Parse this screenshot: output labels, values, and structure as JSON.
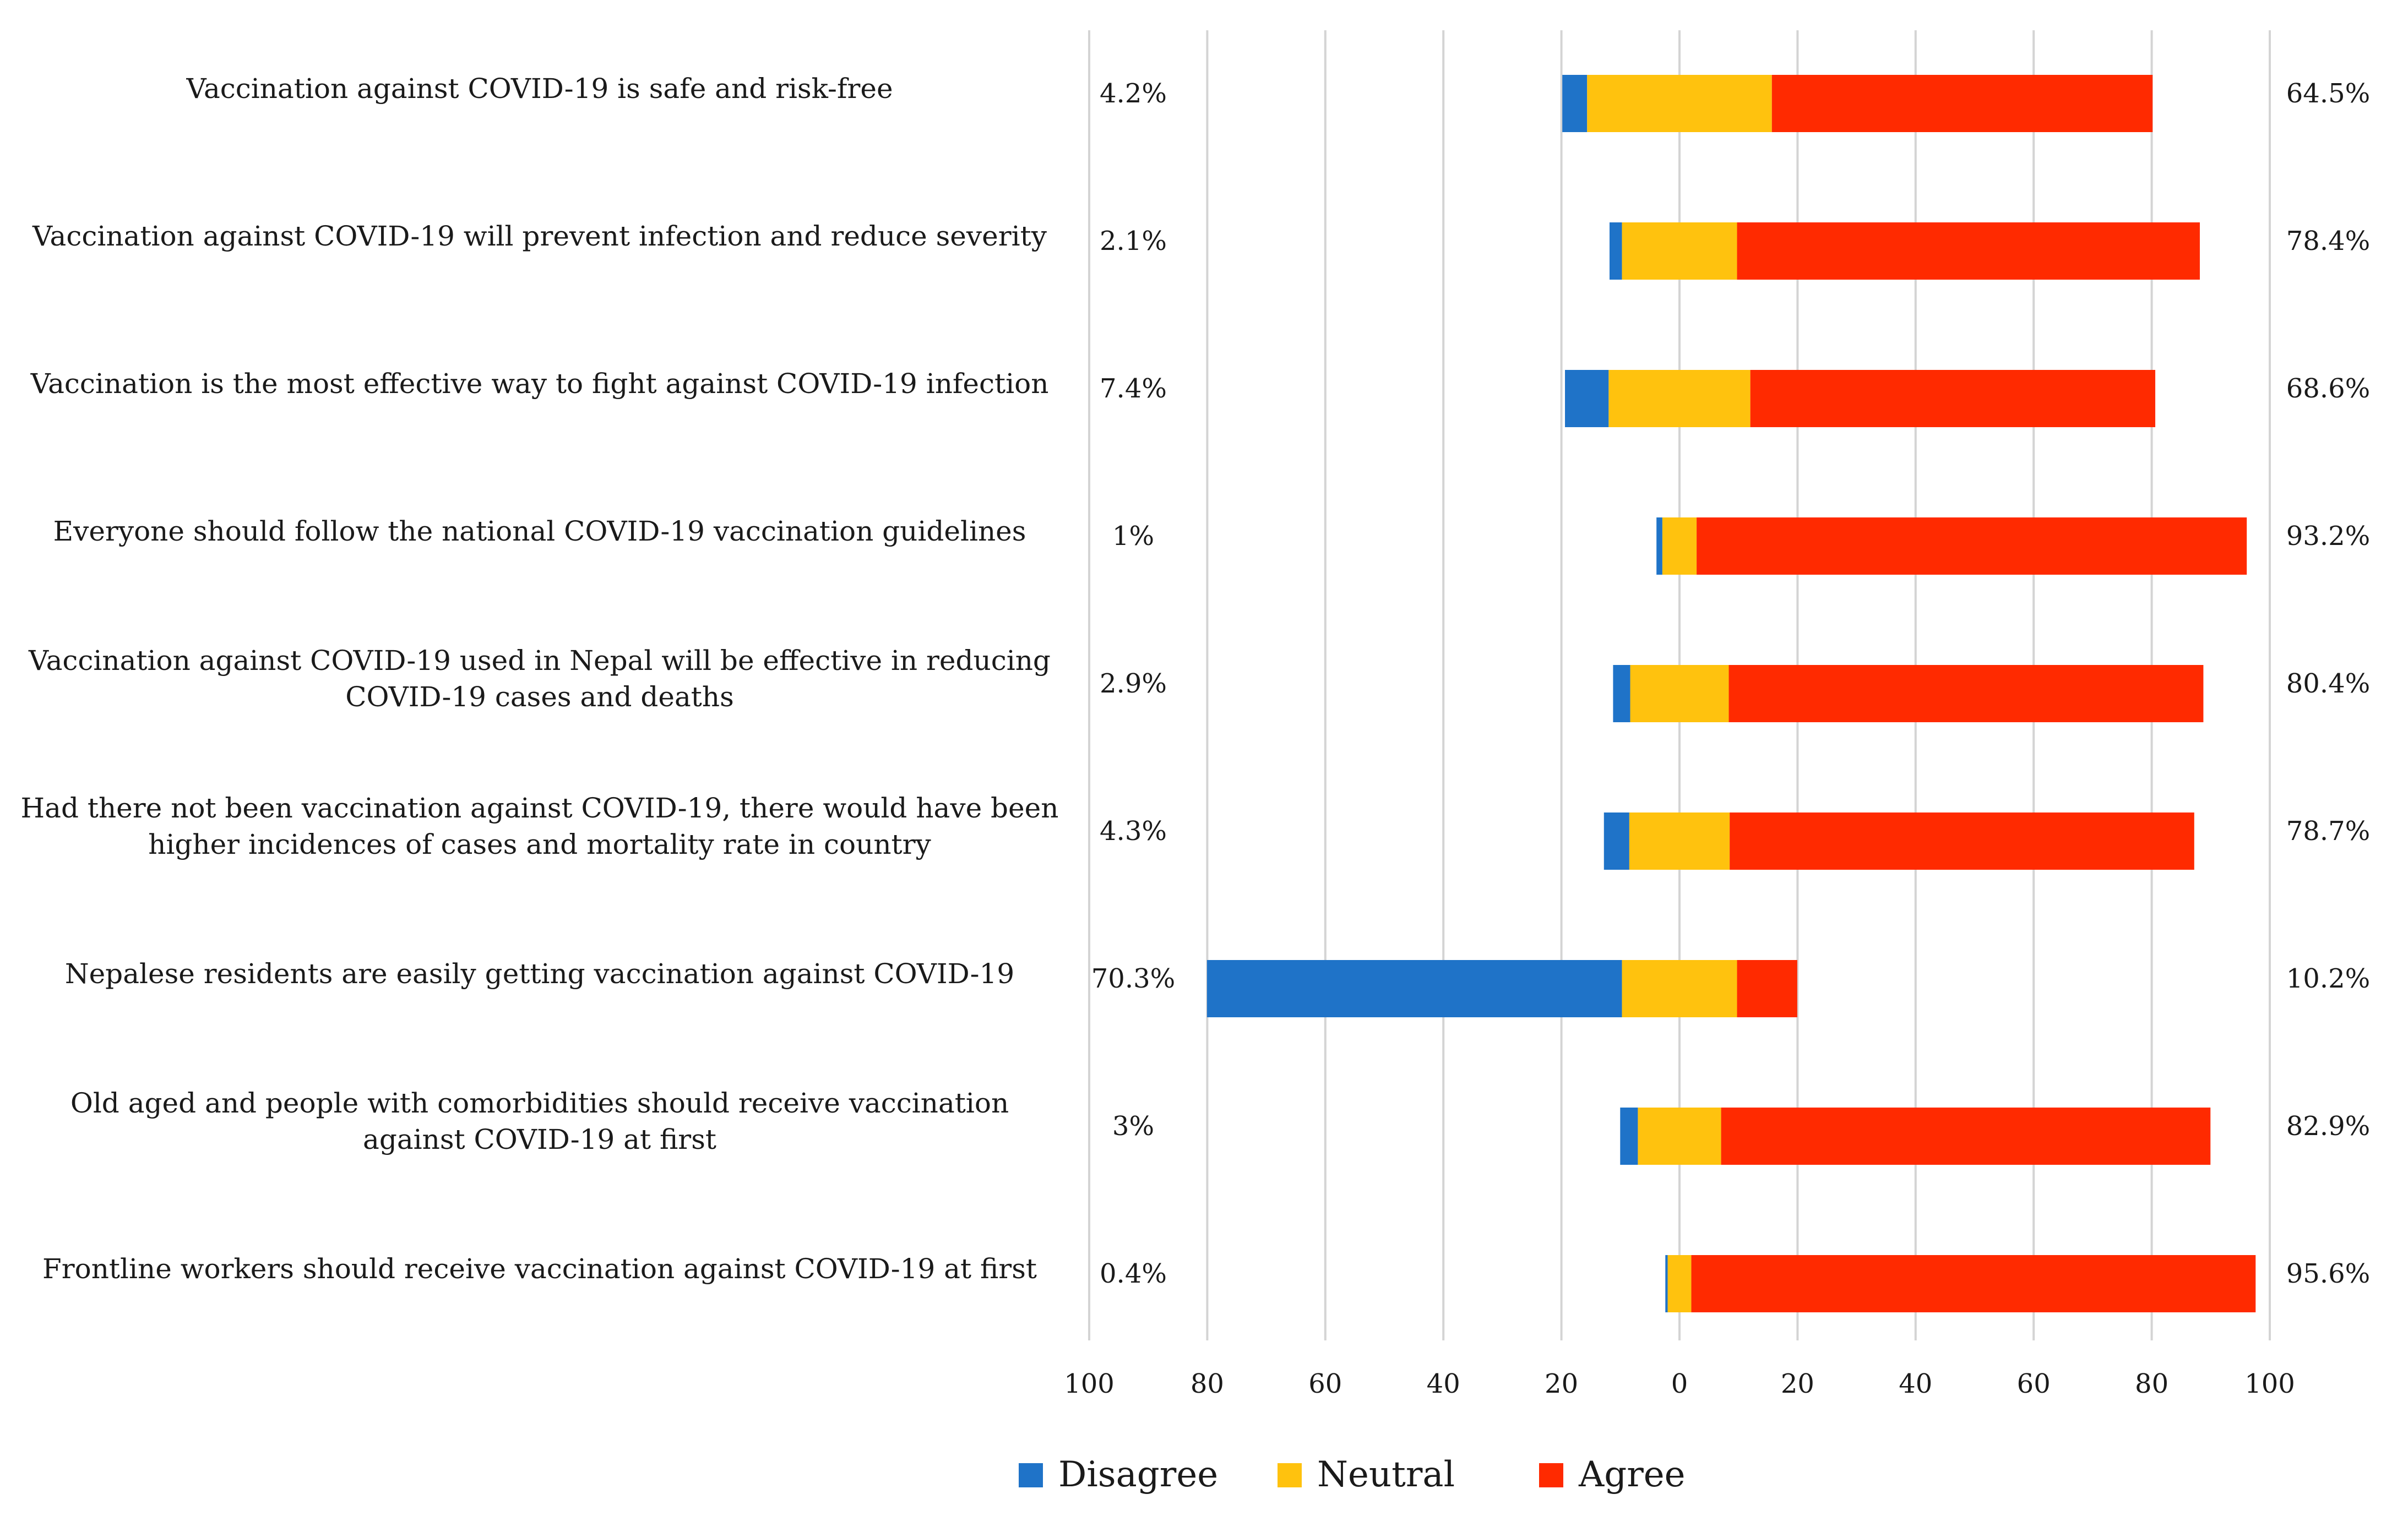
{
  "chart_data": {
    "type": "bar",
    "orientation": "horizontal-diverging",
    "stacked": true,
    "title": "",
    "xlabel": "",
    "ylabel": "",
    "xlim": [
      -100,
      100
    ],
    "xticks": [
      -100,
      -80,
      -60,
      -40,
      -20,
      0,
      20,
      40,
      60,
      80,
      100
    ],
    "xtick_labels": [
      "100",
      "80",
      "60",
      "40",
      "20",
      "0",
      "20",
      "40",
      "60",
      "80",
      "100"
    ],
    "grid": true,
    "legend_position": "bottom",
    "series": [
      {
        "name": "Disagree",
        "color": "#1f73c8"
      },
      {
        "name": "Neutral",
        "color": "#ffc20e"
      },
      {
        "name": "Agree",
        "color": "#ff2a00"
      }
    ],
    "categories": [
      {
        "lines": [
          "Vaccination against COVID-19 is safe and risk-free"
        ],
        "disagree": 4.2,
        "neutral": 31.3,
        "agree": 64.5,
        "disagree_label": "4.2%",
        "agree_label": "64.5%"
      },
      {
        "lines": [
          "Vaccination against COVID-19 will prevent infection and reduce severity"
        ],
        "disagree": 2.1,
        "neutral": 19.5,
        "agree": 78.4,
        "disagree_label": "2.1%",
        "agree_label": "78.4%"
      },
      {
        "lines": [
          "Vaccination is the most effective way to fight against COVID-19 infection"
        ],
        "disagree": 7.4,
        "neutral": 24.0,
        "agree": 68.6,
        "disagree_label": "7.4%",
        "agree_label": "68.6%"
      },
      {
        "lines": [
          "Everyone should follow the national COVID-19 vaccination guidelines"
        ],
        "disagree": 1.0,
        "neutral": 5.8,
        "agree": 93.2,
        "disagree_label": "1%",
        "agree_label": "93.2%"
      },
      {
        "lines": [
          "Vaccination against COVID-19 used in Nepal will be effective in reducing",
          "COVID-19 cases and deaths"
        ],
        "disagree": 2.9,
        "neutral": 16.7,
        "agree": 80.4,
        "disagree_label": "2.9%",
        "agree_label": "80.4%"
      },
      {
        "lines": [
          "Had there not been vaccination against COVID-19, there would have been",
          "higher incidences of cases and mortality rate in country"
        ],
        "disagree": 4.3,
        "neutral": 17.0,
        "agree": 78.7,
        "disagree_label": "4.3%",
        "agree_label": "78.7%"
      },
      {
        "lines": [
          "Nepalese residents are easily getting vaccination against COVID-19"
        ],
        "disagree": 70.3,
        "neutral": 19.5,
        "agree": 10.2,
        "disagree_label": "70.3%",
        "agree_label": "10.2%"
      },
      {
        "lines": [
          "Old aged and people with comorbidities should receive vaccination",
          "against COVID-19 at first"
        ],
        "disagree": 3.0,
        "neutral": 14.1,
        "agree": 82.9,
        "disagree_label": "3%",
        "agree_label": "82.9%"
      },
      {
        "lines": [
          "Frontline workers should receive vaccination against COVID-19 at first"
        ],
        "disagree": 0.4,
        "neutral": 4.0,
        "agree": 95.6,
        "disagree_label": "0.4%",
        "agree_label": "95.6%"
      }
    ]
  }
}
